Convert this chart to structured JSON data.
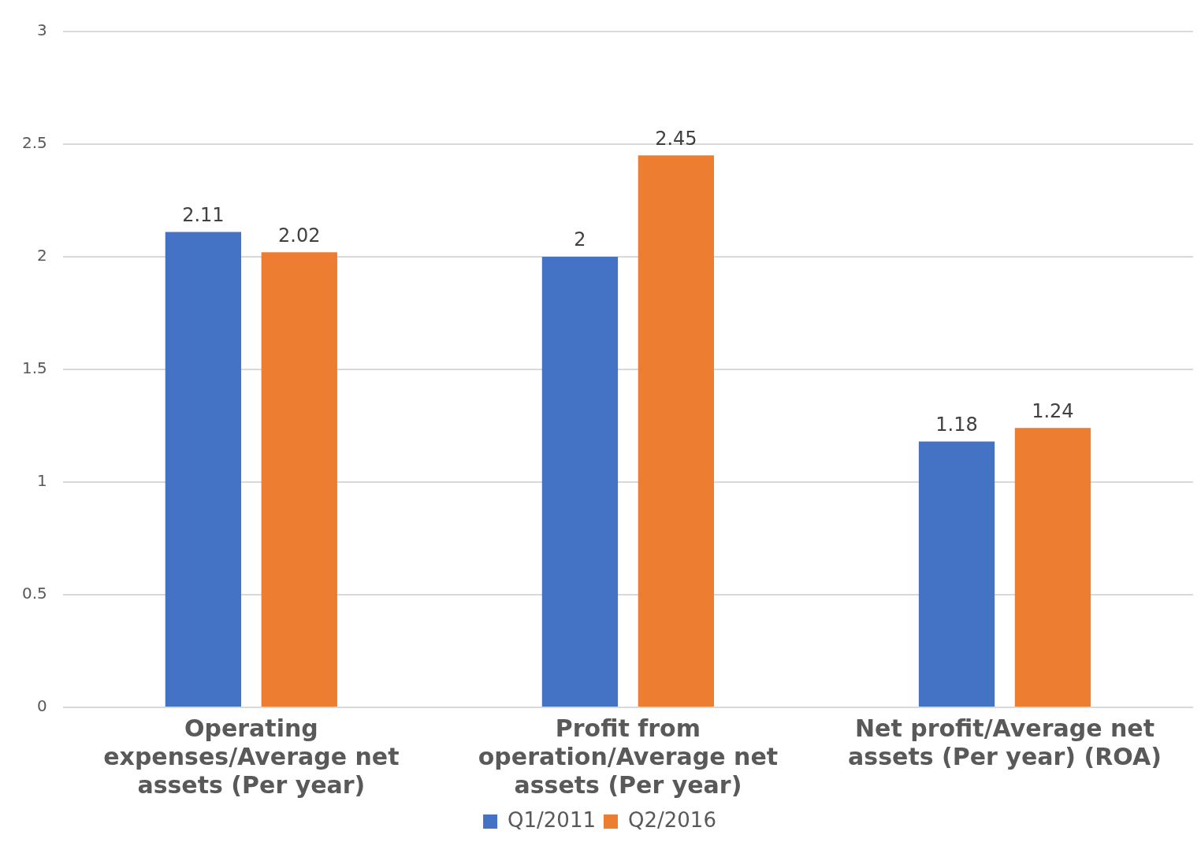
{
  "chart_data": {
    "type": "bar",
    "categories": [
      "Operating expenses/Average net assets (Per year)",
      "Profit from operation/Average net assets (Per year)",
      "Net profit/Average net assets (Per year) (ROA)"
    ],
    "series": [
      {
        "name": "Q1/2011",
        "color": "#4472c4",
        "values": [
          2.11,
          2,
          1.18
        ]
      },
      {
        "name": "Q2/2016",
        "color": "#ed7d31",
        "values": [
          2.02,
          2.45,
          1.24
        ]
      }
    ],
    "ylim": [
      0,
      3
    ],
    "yticks": [
      0,
      0.5,
      1,
      1.5,
      2,
      2.5,
      3
    ],
    "grid": "y",
    "legend": "bottom",
    "data_labels": true
  }
}
